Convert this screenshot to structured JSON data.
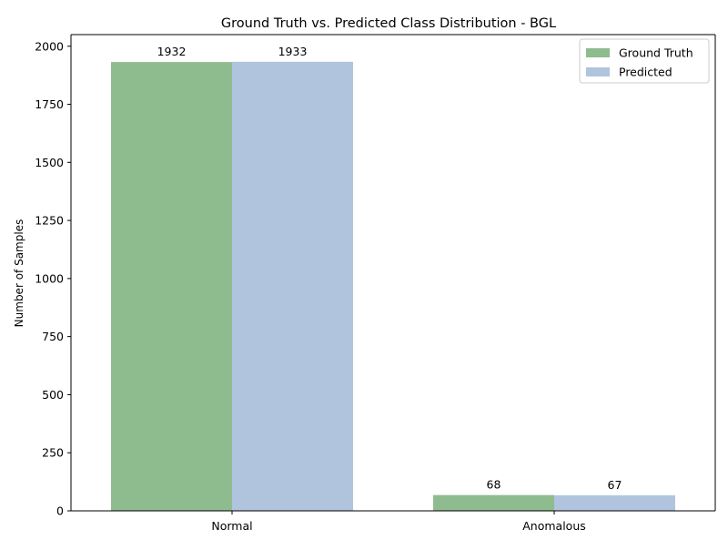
{
  "chart_data": {
    "type": "bar",
    "title": "Ground Truth vs. Predicted Class Distribution - BGL",
    "xlabel": "",
    "ylabel": "Number of Samples",
    "categories": [
      "Normal",
      "Anomalous"
    ],
    "series": [
      {
        "name": "Ground Truth",
        "values": [
          1932,
          68
        ],
        "color": "#8fbc8f"
      },
      {
        "name": "Predicted",
        "values": [
          1933,
          67
        ],
        "color": "#b0c4de"
      }
    ],
    "ylim": [
      0,
      2050
    ],
    "yticks": [
      0,
      250,
      500,
      750,
      1000,
      1250,
      1500,
      1750,
      2000
    ],
    "grid": false,
    "legend_position": "top-right",
    "data_labels": true
  }
}
